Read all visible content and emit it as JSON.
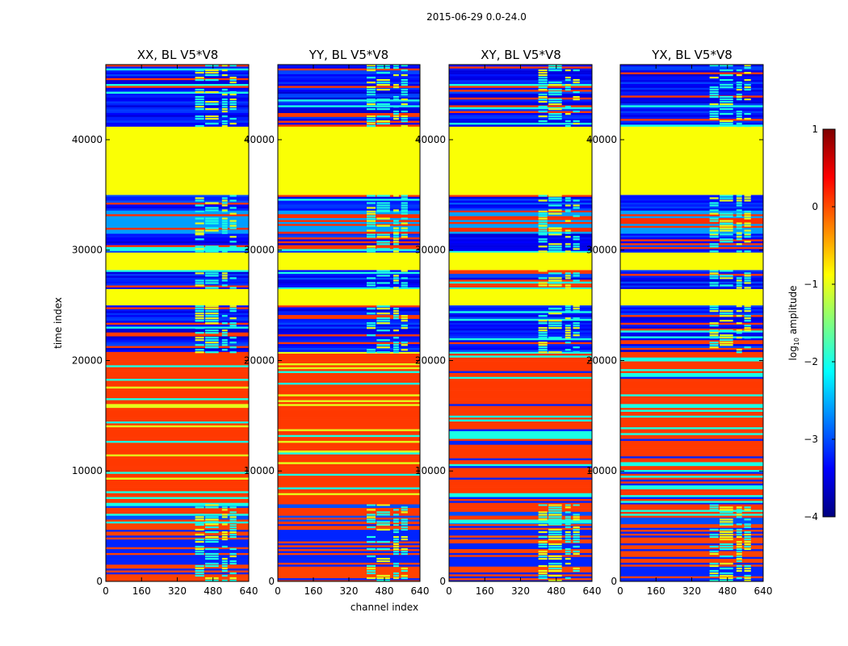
{
  "figure": {
    "suptitle": "2015-06-29 0.0-24.0"
  },
  "chart_data": {
    "type": "heatmap",
    "panels": [
      {
        "title": "XX, BL V5*V8",
        "variant": "parallel"
      },
      {
        "title": "YY, BL V5*V8",
        "variant": "parallel"
      },
      {
        "title": "XY, BL V5*V8",
        "variant": "cross"
      },
      {
        "title": "YX, BL V5*V8",
        "variant": "cross"
      }
    ],
    "xlabel": "channel index",
    "ylabel": "time index",
    "xlim": [
      0,
      640
    ],
    "ylim": [
      0,
      46800
    ],
    "xticks": [
      "0",
      "160",
      "320",
      "480",
      "640"
    ],
    "xtick_values": [
      0,
      160,
      320,
      480,
      640
    ],
    "yticks": [
      "0",
      "10000",
      "20000",
      "30000",
      "40000"
    ],
    "ytick_values": [
      0,
      10000,
      20000,
      30000,
      40000
    ],
    "colorbar": {
      "label": "log",
      "label_sub": "10",
      "label_rest": " amplitude",
      "ticks": [
        "1",
        "0",
        "−1",
        "−2",
        "−3",
        "−4"
      ],
      "tick_values": [
        1,
        0,
        -1,
        -2,
        -3,
        -4
      ],
      "range": [
        -4,
        1
      ],
      "colors": [
        "#00007f",
        "#0000ff",
        "#007fff",
        "#00ffff",
        "#7fff7f",
        "#ffff00",
        "#ff7f00",
        "#ff0000",
        "#7f0000"
      ]
    },
    "bands": [
      {
        "t0": 0,
        "t1": 5200,
        "kind": "stripe",
        "value": -3.2,
        "alt": 0.05
      },
      {
        "t0": 5200,
        "t1": 7000,
        "kind": "mixed_bright",
        "value": -3.0
      },
      {
        "t0": 7000,
        "t1": 20800,
        "kind": "orange_stripes",
        "value": 0.1
      },
      {
        "t0": 20800,
        "t1": 25000,
        "kind": "noise_lines",
        "value": -3.3
      },
      {
        "t0": 25000,
        "t1": 26500,
        "kind": "solid",
        "value": -0.9
      },
      {
        "t0": 26500,
        "t1": 28200,
        "kind": "noise_lines",
        "value": -3.3
      },
      {
        "t0": 28200,
        "t1": 29800,
        "kind": "solid",
        "value": -0.9
      },
      {
        "t0": 29800,
        "t1": 31500,
        "kind": "noise_lines",
        "value": -3.3
      },
      {
        "t0": 31500,
        "t1": 33600,
        "kind": "stripe",
        "value": 0.15,
        "alt": -2.6
      },
      {
        "t0": 33600,
        "t1": 35000,
        "kind": "noise_lines",
        "value": -3.2
      },
      {
        "t0": 35000,
        "t1": 41200,
        "kind": "solid",
        "value": -0.9
      },
      {
        "t0": 41200,
        "t1": 46800,
        "kind": "noise_lines",
        "value": -3.3
      }
    ],
    "rfi_channels": [
      [
        400,
        440
      ],
      [
        445,
        505
      ],
      [
        520,
        545
      ],
      [
        555,
        585
      ]
    ]
  }
}
